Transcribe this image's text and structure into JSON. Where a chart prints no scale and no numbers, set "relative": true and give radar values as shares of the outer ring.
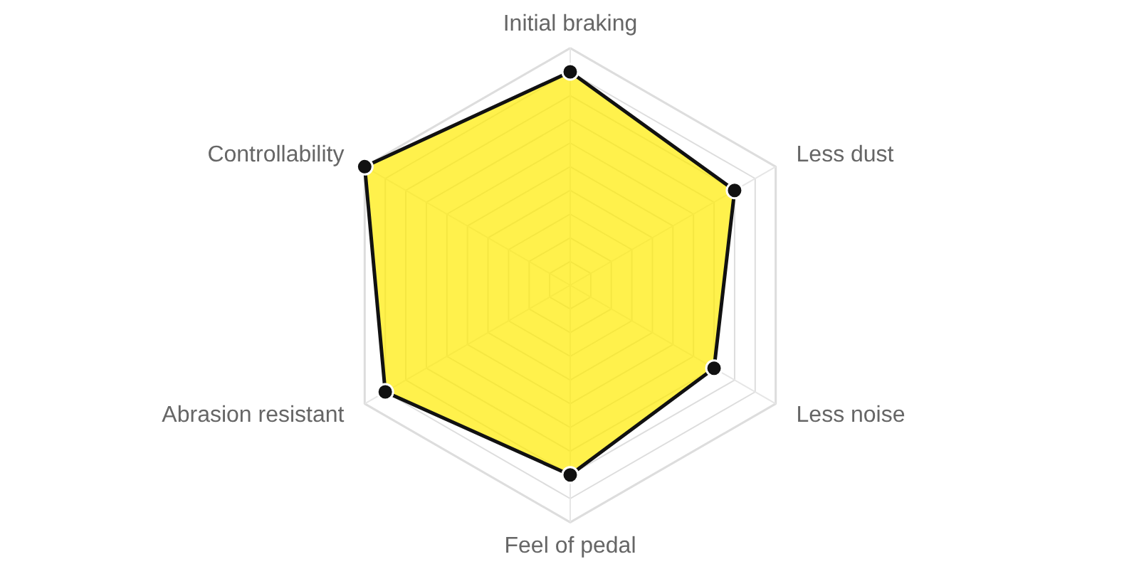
{
  "chart_data": {
    "type": "radar",
    "relative": true,
    "grid": true,
    "marker": "circle",
    "categories": [
      "Initial braking",
      "Less dust",
      "Less noise",
      "Feel of pedal",
      "Abrasion resistant",
      "Controllability"
    ],
    "series": [
      {
        "color": "#ffeb00",
        "values": [
          0.9,
          0.8,
          0.7,
          0.8,
          0.9,
          1.0
        ]
      }
    ]
  }
}
